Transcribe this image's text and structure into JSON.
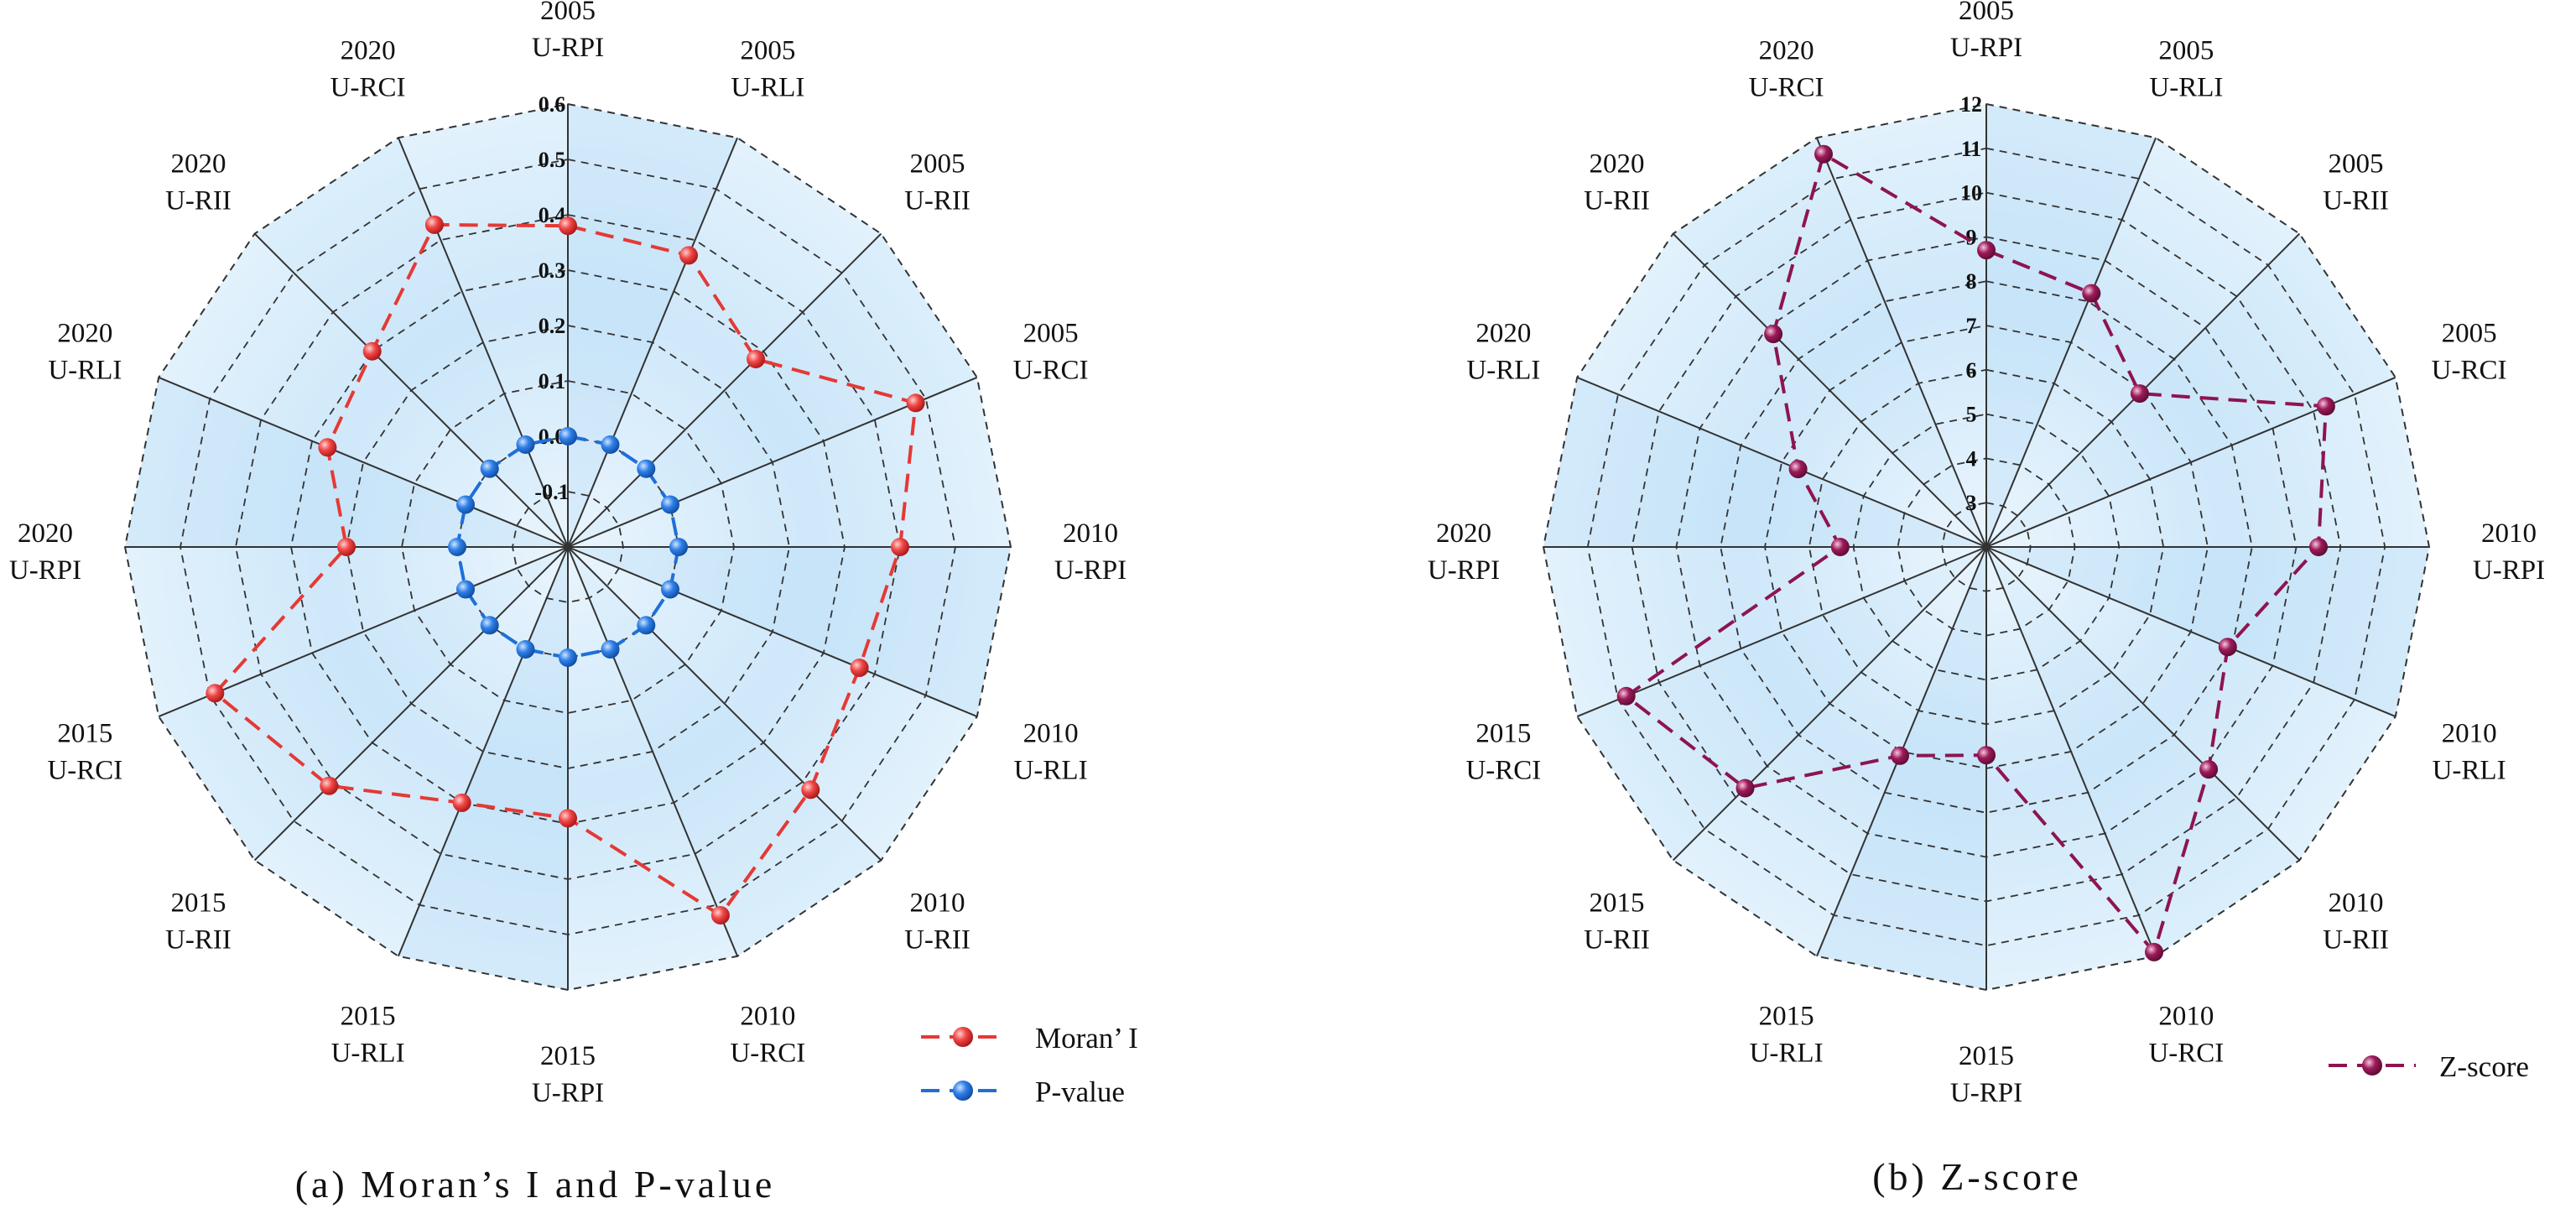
{
  "colors": {
    "moran": "#e53935",
    "pvalue": "#1e6fd9",
    "zscore": "#8e1450",
    "fill_light": "#eaf5fd",
    "fill_dark": "#b6ddf7",
    "grid": "#333333"
  },
  "chart_data": [
    {
      "type": "radar",
      "caption": "(a) Moran’s I and P-value",
      "axes": [
        {
          "year": "2005",
          "name": "U-RPI"
        },
        {
          "year": "2005",
          "name": "U-RLI"
        },
        {
          "year": "2005",
          "name": "U-RII"
        },
        {
          "year": "2005",
          "name": "U-RCI"
        },
        {
          "year": "2010",
          "name": "U-RPI"
        },
        {
          "year": "2010",
          "name": "U-RLI"
        },
        {
          "year": "2010",
          "name": "U-RII"
        },
        {
          "year": "2010",
          "name": "U-RCI"
        },
        {
          "year": "2015",
          "name": "U-RPI"
        },
        {
          "year": "2015",
          "name": "U-RLI"
        },
        {
          "year": "2015",
          "name": "U-RII"
        },
        {
          "year": "2015",
          "name": "U-RCI"
        },
        {
          "year": "2020",
          "name": "U-RPI"
        },
        {
          "year": "2020",
          "name": "U-RLI"
        },
        {
          "year": "2020",
          "name": "U-RII"
        },
        {
          "year": "2020",
          "name": "U-RCI"
        }
      ],
      "r_range": [
        -0.2,
        0.6
      ],
      "tick_values": [
        -0.1,
        0.0,
        0.1,
        0.2,
        0.3,
        0.4,
        0.5,
        0.6
      ],
      "tick_labels": [
        "-0.1",
        "0.0",
        "0.1",
        "0.2",
        "0.3",
        "0.4",
        "0.5",
        "0.6"
      ],
      "rings": 8,
      "series": [
        {
          "name": "Moran’ I",
          "color_key": "moran",
          "style": "dashed",
          "values": [
            0.38,
            0.37,
            0.28,
            0.48,
            0.4,
            0.37,
            0.42,
            0.52,
            0.29,
            0.3,
            0.41,
            0.49,
            0.2,
            0.27,
            0.3,
            0.43
          ]
        },
        {
          "name": "P-value",
          "color_key": "pvalue",
          "style": "dashed",
          "values": [
            0.0,
            0.0,
            0.0,
            0.0,
            0.0,
            0.0,
            0.0,
            0.0,
            0.0,
            0.0,
            0.0,
            0.0,
            0.0,
            0.0,
            0.0,
            0.0
          ]
        }
      ]
    },
    {
      "type": "radar",
      "caption": "(b) Z-score",
      "axes": [
        {
          "year": "2005",
          "name": "U-RPI"
        },
        {
          "year": "2005",
          "name": "U-RLI"
        },
        {
          "year": "2005",
          "name": "U-RII"
        },
        {
          "year": "2005",
          "name": "U-RCI"
        },
        {
          "year": "2010",
          "name": "U-RPI"
        },
        {
          "year": "2010",
          "name": "U-RLI"
        },
        {
          "year": "2010",
          "name": "U-RII"
        },
        {
          "year": "2010",
          "name": "U-RCI"
        },
        {
          "year": "2015",
          "name": "U-RPI"
        },
        {
          "year": "2015",
          "name": "U-RLI"
        },
        {
          "year": "2015",
          "name": "U-RII"
        },
        {
          "year": "2015",
          "name": "U-RCI"
        },
        {
          "year": "2020",
          "name": "U-RPI"
        },
        {
          "year": "2020",
          "name": "U-RLI"
        },
        {
          "year": "2020",
          "name": "U-RII"
        },
        {
          "year": "2020",
          "name": "U-RCI"
        }
      ],
      "r_range": [
        2,
        12
      ],
      "tick_values": [
        3,
        4,
        5,
        6,
        7,
        8,
        9,
        10,
        11,
        12
      ],
      "tick_labels": [
        "3",
        "4",
        "5",
        "6",
        "7",
        "8",
        "9",
        "10",
        "11",
        "12"
      ],
      "rings": 10,
      "series": [
        {
          "name": "Z-score",
          "color_key": "zscore",
          "style": "dashed",
          "values": [
            8.7,
            8.2,
            6.9,
            10.3,
            9.5,
            7.9,
            9.1,
            11.9,
            6.7,
            7.1,
            9.7,
            10.8,
            5.3,
            6.6,
            8.8,
            11.6
          ]
        }
      ]
    }
  ]
}
